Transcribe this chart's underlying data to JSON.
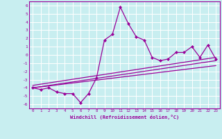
{
  "xlabel": "Windchill (Refroidissement éolien,°C)",
  "background_color": "#c8eef0",
  "grid_color": "#ffffff",
  "line_color": "#990099",
  "xlim": [
    -0.5,
    23.5
  ],
  "ylim": [
    -6.5,
    6.5
  ],
  "xticks": [
    0,
    1,
    2,
    3,
    4,
    5,
    6,
    7,
    8,
    9,
    10,
    11,
    12,
    13,
    14,
    15,
    16,
    17,
    18,
    19,
    20,
    21,
    22,
    23
  ],
  "yticks": [
    -6,
    -5,
    -4,
    -3,
    -2,
    -1,
    0,
    1,
    2,
    3,
    4,
    5,
    6
  ],
  "main_x": [
    0,
    1,
    2,
    3,
    4,
    5,
    6,
    7,
    8,
    9,
    10,
    11,
    12,
    13,
    14,
    15,
    16,
    17,
    18,
    19,
    20,
    21,
    22,
    23
  ],
  "main_y": [
    -4.0,
    -4.2,
    -4.0,
    -4.5,
    -4.7,
    -4.7,
    -5.8,
    -4.7,
    -2.8,
    1.8,
    2.5,
    5.8,
    3.8,
    2.2,
    1.8,
    -0.3,
    -0.7,
    -0.5,
    0.3,
    0.3,
    1.0,
    -0.3,
    1.2,
    -0.5
  ],
  "line1_x": [
    0,
    23
  ],
  "line1_y": [
    -4.0,
    -0.7
  ],
  "line2_x": [
    0,
    23
  ],
  "line2_y": [
    -4.0,
    -1.3
  ],
  "line3_x": [
    0,
    23
  ],
  "line3_y": [
    -3.7,
    -0.3
  ]
}
